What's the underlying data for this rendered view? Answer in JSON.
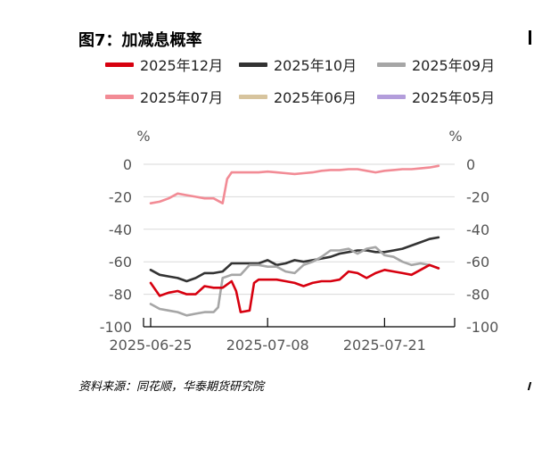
{
  "title": "图7：加减息概率",
  "source": "资料来源：同花顺，华泰期货研究院",
  "chart_data": {
    "type": "line",
    "left_unit": "%",
    "right_unit": "%",
    "ylim": [
      -100,
      0
    ],
    "y_ticks": [
      "0",
      "-20",
      "-40",
      "-60",
      "-80",
      "-100"
    ],
    "x_ticks": [
      "2025-06-25",
      "2025-07-08",
      "2025-07-21"
    ],
    "x_tick_positions": [
      0,
      13,
      26
    ],
    "xlim": [
      0,
      33
    ],
    "legend": [
      {
        "name": "2025年12月",
        "color": "#d7000f"
      },
      {
        "name": "2025年10月",
        "color": "#333333"
      },
      {
        "name": "2025年09月",
        "color": "#a6a6a6"
      },
      {
        "name": "2025年07月",
        "color": "#f28b95"
      },
      {
        "name": "2025年06月",
        "color": "#d7c49e"
      },
      {
        "name": "2025年05月",
        "color": "#b39ddb"
      }
    ],
    "series": [
      {
        "name": "2025年07月",
        "color": "#f28b95",
        "points": [
          [
            0,
            -24
          ],
          [
            1,
            -23
          ],
          [
            2,
            -21
          ],
          [
            3,
            -18
          ],
          [
            4,
            -19
          ],
          [
            5,
            -20
          ],
          [
            6,
            -21
          ],
          [
            7,
            -21
          ],
          [
            8,
            -24
          ],
          [
            8.5,
            -9
          ],
          [
            9,
            -5
          ],
          [
            10,
            -5
          ],
          [
            11,
            -5
          ],
          [
            12,
            -5
          ],
          [
            13,
            -4.5
          ],
          [
            14,
            -5
          ],
          [
            15,
            -5.5
          ],
          [
            16,
            -6
          ],
          [
            17,
            -5.5
          ],
          [
            18,
            -5
          ],
          [
            19,
            -4
          ],
          [
            20,
            -3.5
          ],
          [
            21,
            -3.5
          ],
          [
            22,
            -3
          ],
          [
            23,
            -3
          ],
          [
            24,
            -4
          ],
          [
            25,
            -5
          ],
          [
            26,
            -4
          ],
          [
            27,
            -3.5
          ],
          [
            28,
            -3
          ],
          [
            29,
            -3
          ],
          [
            30,
            -2.5
          ],
          [
            31,
            -2
          ],
          [
            32,
            -1
          ]
        ]
      },
      {
        "name": "2025年10月",
        "color": "#333333",
        "points": [
          [
            0,
            -65
          ],
          [
            1,
            -68
          ],
          [
            2,
            -69
          ],
          [
            3,
            -70
          ],
          [
            4,
            -72
          ],
          [
            5,
            -70
          ],
          [
            6,
            -67
          ],
          [
            7,
            -67
          ],
          [
            8,
            -66
          ],
          [
            9,
            -61
          ],
          [
            10,
            -61
          ],
          [
            11,
            -61
          ],
          [
            12,
            -61
          ],
          [
            13,
            -59
          ],
          [
            14,
            -62
          ],
          [
            15,
            -61
          ],
          [
            16,
            -59
          ],
          [
            17,
            -60
          ],
          [
            18,
            -59
          ],
          [
            19,
            -58
          ],
          [
            20,
            -57
          ],
          [
            21,
            -55
          ],
          [
            22,
            -54
          ],
          [
            23,
            -53
          ],
          [
            24,
            -53
          ],
          [
            25,
            -54
          ],
          [
            26,
            -54
          ],
          [
            27,
            -53
          ],
          [
            28,
            -52
          ],
          [
            29,
            -50
          ],
          [
            30,
            -48
          ],
          [
            31,
            -46
          ],
          [
            32,
            -45
          ]
        ]
      },
      {
        "name": "2025年09月",
        "color": "#a6a6a6",
        "points": [
          [
            0,
            -86
          ],
          [
            1,
            -89
          ],
          [
            2,
            -90
          ],
          [
            3,
            -91
          ],
          [
            4,
            -93
          ],
          [
            5,
            -92
          ],
          [
            6,
            -91
          ],
          [
            7,
            -91
          ],
          [
            7.5,
            -88
          ],
          [
            8,
            -70
          ],
          [
            9,
            -68
          ],
          [
            10,
            -68
          ],
          [
            11,
            -62
          ],
          [
            12,
            -62
          ],
          [
            13,
            -63
          ],
          [
            14,
            -63
          ],
          [
            15,
            -66
          ],
          [
            16,
            -67
          ],
          [
            17,
            -62
          ],
          [
            18,
            -60
          ],
          [
            19,
            -57
          ],
          [
            20,
            -53
          ],
          [
            21,
            -53
          ],
          [
            22,
            -52
          ],
          [
            23,
            -55
          ],
          [
            24,
            -52
          ],
          [
            25,
            -51
          ],
          [
            26,
            -56
          ],
          [
            27,
            -57
          ],
          [
            28,
            -60
          ],
          [
            29,
            -62
          ],
          [
            30,
            -61
          ],
          [
            31,
            -62
          ],
          [
            32,
            -64
          ]
        ]
      },
      {
        "name": "2025年12月",
        "color": "#d7000f",
        "points": [
          [
            0,
            -73
          ],
          [
            1,
            -81
          ],
          [
            2,
            -79
          ],
          [
            3,
            -78
          ],
          [
            4,
            -80
          ],
          [
            5,
            -80
          ],
          [
            6,
            -75
          ],
          [
            7,
            -76
          ],
          [
            8,
            -76
          ],
          [
            9,
            -72
          ],
          [
            9.5,
            -78
          ],
          [
            10,
            -91
          ],
          [
            11,
            -90
          ],
          [
            11.5,
            -73
          ],
          [
            12,
            -71
          ],
          [
            13,
            -71
          ],
          [
            14,
            -71
          ],
          [
            15,
            -72
          ],
          [
            16,
            -73
          ],
          [
            17,
            -75
          ],
          [
            18,
            -73
          ],
          [
            19,
            -72
          ],
          [
            20,
            -72
          ],
          [
            21,
            -71
          ],
          [
            22,
            -66
          ],
          [
            23,
            -67
          ],
          [
            24,
            -70
          ],
          [
            25,
            -67
          ],
          [
            26,
            -65
          ],
          [
            27,
            -66
          ],
          [
            28,
            -67
          ],
          [
            29,
            -68
          ],
          [
            30,
            -65
          ],
          [
            31,
            -62
          ],
          [
            32,
            -64
          ]
        ]
      }
    ]
  }
}
